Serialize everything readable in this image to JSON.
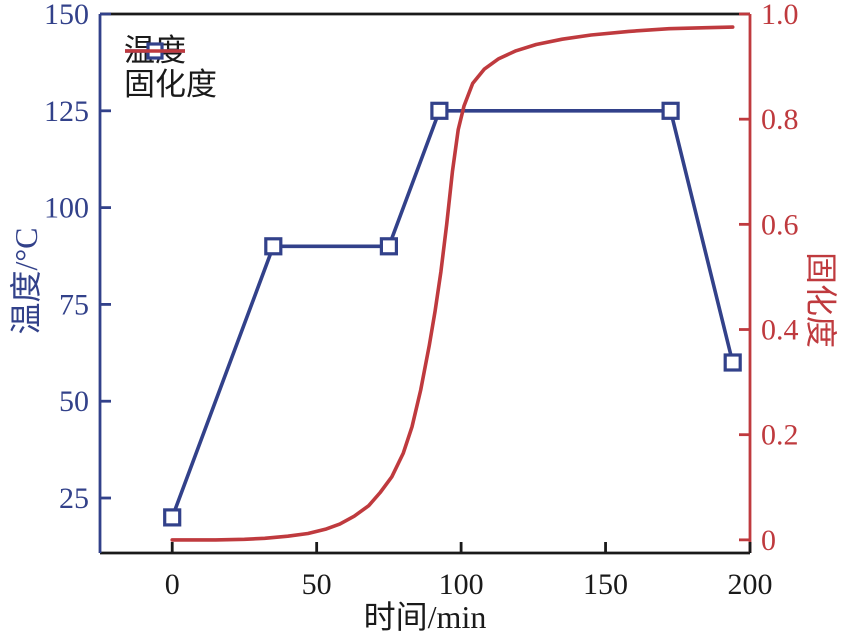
{
  "figure": {
    "background": "#ffffff",
    "text_color": "#1a1a1a"
  },
  "chart_data": {
    "type": "line",
    "dual_axis": true,
    "title": "",
    "grid": false,
    "background": "#ffffff",
    "x_axis": {
      "label": "时间/min",
      "lim": [
        -25,
        200
      ],
      "ticks": [
        0,
        50,
        100,
        150,
        200
      ],
      "tick_labels": [
        "0",
        "50",
        "100",
        "150",
        "200"
      ],
      "color": "#1a1a1a"
    },
    "y_axis_left": {
      "label": "温度/°C",
      "lim": [
        10.8,
        150
      ],
      "ticks": [
        25,
        50,
        75,
        100,
        125,
        150
      ],
      "tick_labels": [
        "25",
        "50",
        "75",
        "100",
        "125",
        "150"
      ],
      "color": "#32418a"
    },
    "y_axis_right": {
      "label": "固化度",
      "lim": [
        -0.025,
        1.0
      ],
      "ticks": [
        0,
        0.2,
        0.4,
        0.6,
        0.8,
        1.0
      ],
      "tick_labels": [
        "0",
        "0.2",
        "0.4",
        "0.6",
        "0.8",
        "1.0"
      ],
      "color": "#bf3a3e"
    },
    "legend": {
      "position": "top-left",
      "frame": false
    },
    "series": [
      {
        "name": "temperature",
        "label": "温度",
        "axis": "left",
        "color": "#32418a",
        "marker": "open-square",
        "points": [
          [
            0,
            20
          ],
          [
            35,
            90
          ],
          [
            75,
            90
          ],
          [
            92.5,
            125
          ],
          [
            172.5,
            125
          ],
          [
            194,
            60
          ]
        ]
      },
      {
        "name": "degree-of-cure",
        "label": "固化度",
        "axis": "right",
        "color": "#bf3a3e",
        "marker": "none",
        "points": [
          [
            0,
            0
          ],
          [
            15,
            0
          ],
          [
            25,
            0.001
          ],
          [
            32,
            0.003
          ],
          [
            40,
            0.007
          ],
          [
            47,
            0.012
          ],
          [
            53,
            0.02
          ],
          [
            58,
            0.03
          ],
          [
            63,
            0.045
          ],
          [
            68,
            0.065
          ],
          [
            72,
            0.09
          ],
          [
            76,
            0.12
          ],
          [
            80,
            0.165
          ],
          [
            83,
            0.215
          ],
          [
            86,
            0.285
          ],
          [
            89,
            0.37
          ],
          [
            91,
            0.435
          ],
          [
            93,
            0.51
          ],
          [
            95,
            0.6
          ],
          [
            97,
            0.7
          ],
          [
            99,
            0.78
          ],
          [
            101,
            0.825
          ],
          [
            104,
            0.868
          ],
          [
            108,
            0.895
          ],
          [
            113,
            0.915
          ],
          [
            119,
            0.93
          ],
          [
            126,
            0.942
          ],
          [
            135,
            0.952
          ],
          [
            145,
            0.96
          ],
          [
            158,
            0.967
          ],
          [
            172,
            0.972
          ],
          [
            185,
            0.974
          ],
          [
            194,
            0.975
          ]
        ]
      }
    ]
  }
}
